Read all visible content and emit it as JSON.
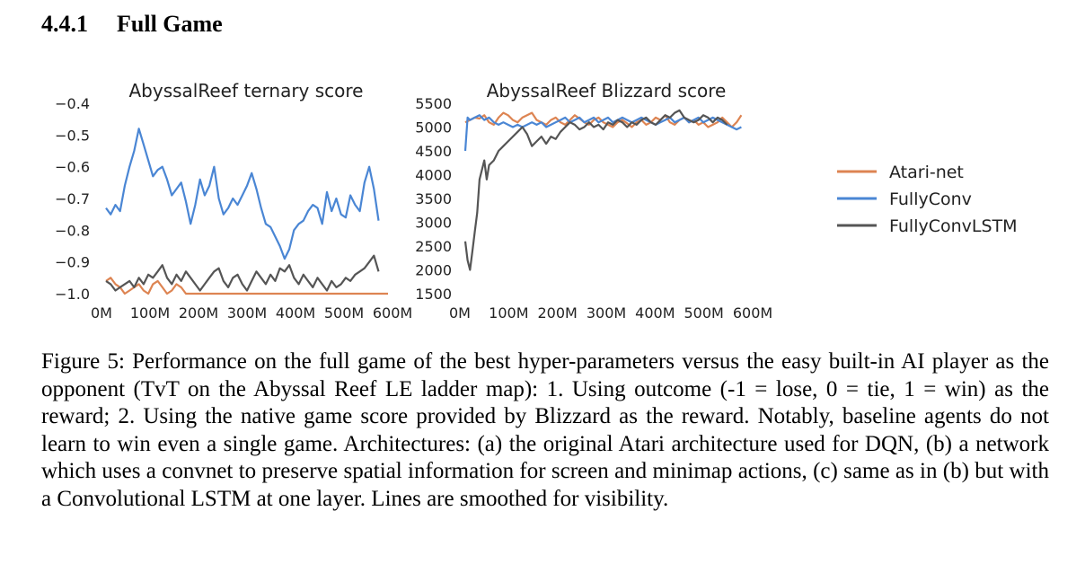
{
  "section": {
    "number": "4.4.1",
    "title": "Full Game"
  },
  "caption": "Figure 5: Performance on the full game of the best hyper-parameters versus the easy built-in AI player as the opponent (TvT on the Abyssal Reef LE ladder map): 1. Using outcome (-1 = lose, 0 = tie, 1 = win) as the reward; 2. Using the native game score provided by Blizzard as the reward. Notably, baseline agents do not learn to win even a single game. Architectures: (a) the original Atari architecture used for DQN, (b) a network which uses a convnet to preserve spatial information for screen and minimap actions, (c) same as in (b) but with a Convolutional LSTM at one layer. Lines are smoothed for visibility.",
  "legend": [
    {
      "name": "Atari-net",
      "color": "#dd8452"
    },
    {
      "name": "FullyConv",
      "color": "#4a86d4"
    },
    {
      "name": "FullyConvLSTM",
      "color": "#555555"
    }
  ],
  "chart_data": [
    {
      "type": "line",
      "title": "AbyssalReef ternary score",
      "xlabel": "",
      "ylabel": "",
      "xlim": [
        0,
        600
      ],
      "ylim": [
        -1.0,
        -0.4
      ],
      "xticks": [
        "0M",
        "100M",
        "200M",
        "300M",
        "400M",
        "500M",
        "600M"
      ],
      "yticks": [
        "−0.4",
        "−0.5",
        "−0.6",
        "−0.7",
        "−0.8",
        "−0.9",
        "−1.0"
      ],
      "grid": false,
      "series": [
        {
          "name": "Atari-net",
          "x": [
            0,
            10,
            20,
            30,
            40,
            50,
            60,
            70,
            80,
            90,
            100,
            110,
            120,
            130,
            140,
            150,
            160,
            170,
            180,
            200,
            250,
            300,
            350,
            400,
            450,
            500,
            550,
            600
          ],
          "y": [
            -0.96,
            -0.95,
            -0.97,
            -0.98,
            -1.0,
            -0.99,
            -0.98,
            -0.97,
            -0.99,
            -1.0,
            -0.97,
            -0.96,
            -0.98,
            -1.0,
            -0.99,
            -0.97,
            -0.98,
            -1.0,
            -1.0,
            -1.0,
            -1.0,
            -1.0,
            -1.0,
            -1.0,
            -1.0,
            -1.0,
            -1.0,
            -1.0
          ]
        },
        {
          "name": "FullyConv",
          "x": [
            0,
            10,
            20,
            30,
            40,
            50,
            60,
            70,
            80,
            90,
            100,
            110,
            120,
            130,
            140,
            150,
            160,
            170,
            180,
            190,
            200,
            210,
            220,
            230,
            240,
            250,
            260,
            270,
            280,
            290,
            300,
            310,
            320,
            330,
            340,
            350,
            360,
            370,
            380,
            390,
            400,
            410,
            420,
            430,
            440,
            450,
            460,
            470,
            480,
            490,
            500,
            510,
            520,
            530,
            540,
            550,
            560,
            570,
            580
          ],
          "y": [
            -0.73,
            -0.75,
            -0.72,
            -0.74,
            -0.66,
            -0.6,
            -0.55,
            -0.48,
            -0.53,
            -0.58,
            -0.63,
            -0.61,
            -0.6,
            -0.64,
            -0.69,
            -0.67,
            -0.65,
            -0.71,
            -0.78,
            -0.72,
            -0.64,
            -0.69,
            -0.66,
            -0.6,
            -0.7,
            -0.75,
            -0.73,
            -0.7,
            -0.72,
            -0.69,
            -0.66,
            -0.62,
            -0.67,
            -0.73,
            -0.78,
            -0.79,
            -0.82,
            -0.85,
            -0.89,
            -0.86,
            -0.8,
            -0.78,
            -0.77,
            -0.74,
            -0.72,
            -0.73,
            -0.78,
            -0.68,
            -0.74,
            -0.7,
            -0.75,
            -0.76,
            -0.69,
            -0.72,
            -0.74,
            -0.65,
            -0.6,
            -0.67,
            -0.77
          ]
        },
        {
          "name": "FullyConvLSTM",
          "x": [
            0,
            10,
            20,
            30,
            40,
            50,
            60,
            70,
            80,
            90,
            100,
            110,
            120,
            130,
            140,
            150,
            160,
            170,
            180,
            190,
            200,
            210,
            220,
            230,
            240,
            250,
            260,
            270,
            280,
            290,
            300,
            310,
            320,
            330,
            340,
            350,
            360,
            370,
            380,
            390,
            400,
            410,
            420,
            430,
            440,
            450,
            460,
            470,
            480,
            490,
            500,
            510,
            520,
            530,
            540,
            550,
            560,
            570,
            580
          ],
          "y": [
            -0.96,
            -0.97,
            -0.99,
            -0.98,
            -0.97,
            -0.96,
            -0.98,
            -0.95,
            -0.97,
            -0.94,
            -0.95,
            -0.93,
            -0.91,
            -0.95,
            -0.97,
            -0.94,
            -0.96,
            -0.93,
            -0.95,
            -0.97,
            -0.99,
            -0.97,
            -0.95,
            -0.93,
            -0.92,
            -0.96,
            -0.98,
            -0.95,
            -0.94,
            -0.97,
            -0.99,
            -0.96,
            -0.93,
            -0.95,
            -0.97,
            -0.94,
            -0.96,
            -0.92,
            -0.93,
            -0.91,
            -0.95,
            -0.97,
            -0.94,
            -0.96,
            -0.98,
            -0.95,
            -0.97,
            -0.99,
            -0.96,
            -0.98,
            -0.97,
            -0.95,
            -0.96,
            -0.94,
            -0.93,
            -0.92,
            -0.9,
            -0.88,
            -0.93
          ]
        }
      ]
    },
    {
      "type": "line",
      "title": "AbyssalReef Blizzard score",
      "xlabel": "",
      "ylabel": "",
      "xlim": [
        0,
        600
      ],
      "ylim": [
        1500,
        5500
      ],
      "xticks": [
        "0M",
        "100M",
        "200M",
        "300M",
        "400M",
        "500M",
        "600M"
      ],
      "yticks": [
        "5500",
        "5000",
        "4500",
        "4000",
        "3500",
        "3000",
        "2500",
        "2000",
        "1500"
      ],
      "grid": false,
      "series": [
        {
          "name": "Atari-net",
          "x": [
            0,
            10,
            20,
            30,
            40,
            50,
            60,
            70,
            80,
            90,
            100,
            110,
            120,
            130,
            140,
            150,
            160,
            170,
            180,
            190,
            200,
            210,
            220,
            230,
            240,
            250,
            260,
            270,
            280,
            290,
            300,
            310,
            320,
            330,
            340,
            350,
            360,
            370,
            380,
            390,
            400,
            410,
            420,
            430,
            440,
            450,
            460,
            470,
            480,
            490,
            500,
            510,
            520,
            530,
            540,
            550,
            560,
            570,
            580
          ],
          "y": [
            5100,
            5150,
            5200,
            5180,
            5250,
            5100,
            5050,
            5200,
            5300,
            5250,
            5150,
            5100,
            5200,
            5250,
            5300,
            5150,
            5100,
            5050,
            5150,
            5200,
            5100,
            5050,
            5150,
            5250,
            5180,
            5100,
            5050,
            5150,
            5200,
            5100,
            5050,
            5000,
            5100,
            5150,
            5080,
            5000,
            5100,
            5150,
            5050,
            5100,
            5200,
            5150,
            5250,
            5100,
            5050,
            5150,
            5200,
            5100,
            5150,
            5050,
            5100,
            5000,
            5050,
            5100,
            5200,
            5100,
            5000,
            5100,
            5250
          ]
        },
        {
          "name": "FullyConv",
          "x": [
            0,
            5,
            10,
            20,
            30,
            40,
            50,
            60,
            70,
            80,
            90,
            100,
            110,
            120,
            130,
            140,
            150,
            160,
            170,
            180,
            190,
            200,
            210,
            220,
            230,
            240,
            250,
            260,
            270,
            280,
            290,
            300,
            310,
            320,
            330,
            340,
            350,
            360,
            370,
            380,
            390,
            400,
            410,
            420,
            430,
            440,
            450,
            460,
            470,
            480,
            490,
            500,
            510,
            520,
            530,
            540,
            550,
            560,
            570,
            580
          ],
          "y": [
            4500,
            5200,
            5150,
            5200,
            5250,
            5150,
            5200,
            5100,
            5050,
            5100,
            5050,
            5000,
            5050,
            5000,
            5050,
            5100,
            5050,
            5100,
            5000,
            5050,
            5100,
            5150,
            5200,
            5100,
            5150,
            5200,
            5100,
            5150,
            5200,
            5100,
            5150,
            5200,
            5100,
            5150,
            5200,
            5150,
            5100,
            5150,
            5200,
            5150,
            5100,
            5050,
            5100,
            5150,
            5200,
            5100,
            5150,
            5200,
            5100,
            5150,
            5200,
            5100,
            5150,
            5200,
            5150,
            5100,
            5050,
            5000,
            4950,
            5000
          ]
        },
        {
          "name": "FullyConvLSTM",
          "x": [
            0,
            5,
            10,
            15,
            20,
            25,
            30,
            40,
            45,
            50,
            60,
            70,
            80,
            90,
            100,
            110,
            120,
            130,
            140,
            150,
            160,
            170,
            180,
            190,
            200,
            210,
            220,
            230,
            240,
            250,
            260,
            270,
            280,
            290,
            300,
            310,
            320,
            330,
            340,
            350,
            360,
            370,
            380,
            390,
            400,
            410,
            420,
            430,
            440,
            450,
            460,
            470,
            480,
            490,
            500,
            510,
            520,
            530,
            540,
            550
          ],
          "y": [
            2600,
            2200,
            2000,
            2400,
            2800,
            3200,
            3900,
            4300,
            3900,
            4200,
            4300,
            4500,
            4600,
            4700,
            4800,
            4900,
            5000,
            4850,
            4600,
            4700,
            4800,
            4650,
            4800,
            4750,
            4900,
            5000,
            5100,
            5050,
            4950,
            5000,
            5100,
            5000,
            5050,
            4950,
            5100,
            5050,
            5150,
            5100,
            5000,
            5100,
            5050,
            5150,
            5200,
            5100,
            5050,
            5150,
            5250,
            5200,
            5300,
            5350,
            5200,
            5150,
            5100,
            5150,
            5250,
            5200,
            5100,
            5200,
            5150,
            5050
          ]
        }
      ]
    }
  ]
}
